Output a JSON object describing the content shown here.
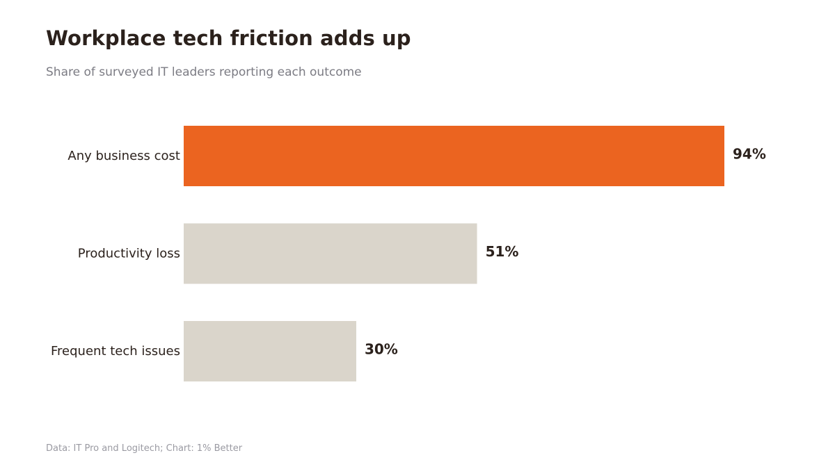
{
  "header": {
    "title": "Workplace tech friction adds up",
    "subtitle": "Share of surveyed IT leaders reporting each outcome"
  },
  "footer": {
    "source": "Data: IT Pro and Logitech; Chart: 1% Better"
  },
  "chart_data": {
    "type": "bar",
    "orientation": "horizontal",
    "title": "Workplace tech friction adds up",
    "subtitle": "Share of surveyed IT leaders reporting each outcome",
    "categories": [
      "Any business cost",
      "Productivity loss",
      "Frequent tech issues"
    ],
    "values": [
      94,
      51,
      30
    ],
    "value_labels": [
      "94%",
      "51%",
      "30%"
    ],
    "unit": "%",
    "xlim": [
      0,
      100
    ],
    "grid": false,
    "legend": "none",
    "colors": {
      "highlight": "#eb6420",
      "base": "#dad5cb",
      "text": "#2b211c"
    },
    "highlight_index": 0
  }
}
